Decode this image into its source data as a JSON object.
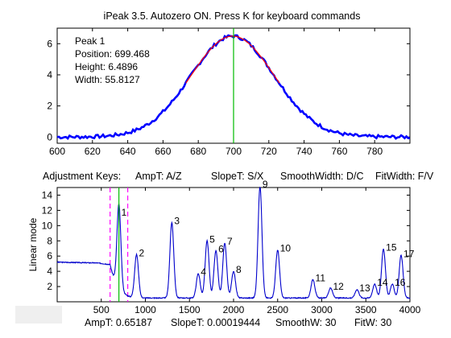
{
  "window": {
    "title": "iPeak 3.5. Autozero ON.  Press K for keyboard commands"
  },
  "colors": {
    "background": "#ffffff",
    "signal_upper": "#0000ff",
    "fit_upper": "#ff0000",
    "peak_marker": "#00bb00",
    "signal_lower": "#0000cc",
    "window_lines": "#ff00ff",
    "axis": "#000000"
  },
  "upper_panel": {
    "info": {
      "peak": "Peak 1",
      "position": "Position: 699.468",
      "height": "Height: 6.4896",
      "width": "Width: 55.8127"
    }
  },
  "adjustment_keys": {
    "label": "Adjustment Keys:",
    "ampt": "AmpT: A/Z",
    "slopet": "SlopeT: S/X",
    "smoothwidth": "SmoothWidth: D/C",
    "fitwidth": "FitWidth: F/V"
  },
  "lower_panel": {
    "ylabel": "Linear mode"
  },
  "status": {
    "ampt": "AmpT: 0.65187",
    "slopet": "SlopeT: 0.00019444",
    "smoothw": "SmoothW: 30",
    "fitw": "FitW: 30"
  },
  "chart_data": [
    {
      "type": "line",
      "title": "iPeak 3.5. Autozero ON.  Press K for keyboard commands",
      "xlim": [
        600,
        800
      ],
      "ylim": [
        -0.4,
        7
      ],
      "xticks": [
        600,
        620,
        640,
        660,
        680,
        700,
        720,
        740,
        760,
        780
      ],
      "yticks": [
        0,
        2,
        4,
        6
      ],
      "grid": false,
      "signal_shape": {
        "kind": "gaussian",
        "center": 699.468,
        "height": 6.4896,
        "fwhm": 55.8127
      },
      "marker_x": 700
    },
    {
      "type": "line",
      "xlabel": "",
      "ylabel": "Linear mode",
      "xlim": [
        0,
        4000
      ],
      "ylim": [
        0,
        15
      ],
      "xticks": [
        500,
        1000,
        1500,
        2000,
        2500,
        3000,
        3500,
        4000
      ],
      "yticks": [
        2,
        4,
        6,
        8,
        10,
        12,
        14
      ],
      "grid": false,
      "baseline": {
        "x": [
          0,
          450,
          600
        ],
        "y": [
          4.9,
          4.8,
          4.6
        ]
      },
      "peaks": [
        {
          "label": "1",
          "x": 700,
          "y": 11.5
        },
        {
          "label": "2",
          "x": 900,
          "y": 6.2
        },
        {
          "label": "3",
          "x": 1300,
          "y": 10.4
        },
        {
          "label": "4",
          "x": 1600,
          "y": 3.7
        },
        {
          "label": "5",
          "x": 1700,
          "y": 8.0
        },
        {
          "label": "6",
          "x": 1800,
          "y": 6.7
        },
        {
          "label": "7",
          "x": 1900,
          "y": 7.7
        },
        {
          "label": "8",
          "x": 2000,
          "y": 4.0
        },
        {
          "label": "9",
          "x": 2300,
          "y": 15.2
        },
        {
          "label": "10",
          "x": 2500,
          "y": 6.8
        },
        {
          "label": "11",
          "x": 2900,
          "y": 2.9
        },
        {
          "label": "12",
          "x": 3100,
          "y": 1.8
        },
        {
          "label": "13",
          "x": 3400,
          "y": 1.6
        },
        {
          "label": "14",
          "x": 3600,
          "y": 2.3
        },
        {
          "label": "15",
          "x": 3700,
          "y": 6.9
        },
        {
          "label": "16",
          "x": 3800,
          "y": 2.3
        },
        {
          "label": "17",
          "x": 3900,
          "y": 6.1
        }
      ],
      "window_lines_x": [
        600,
        800
      ],
      "marker_x": 700
    }
  ]
}
